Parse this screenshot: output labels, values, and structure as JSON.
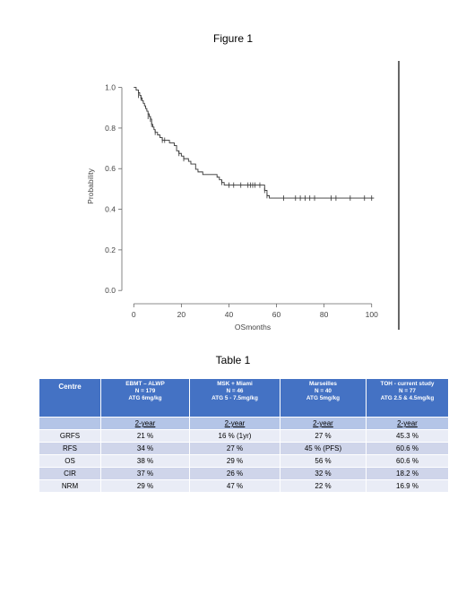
{
  "figure": {
    "title": "Figure 1"
  },
  "chart_data": {
    "type": "line",
    "xlabel": "OSmonths",
    "ylabel": "Probability",
    "xlim": [
      -5,
      105
    ],
    "ylim": [
      -0.03,
      1.06
    ],
    "x_ticks": [
      "0",
      "20",
      "40",
      "60",
      "80",
      "100"
    ],
    "x_tick_values": [
      0,
      20,
      40,
      60,
      80,
      100
    ],
    "y_ticks": [
      "0.0",
      "0.2",
      "0.4",
      "0.6",
      "0.8",
      "1.0"
    ],
    "y_tick_values": [
      0.0,
      0.2,
      0.4,
      0.6,
      0.8,
      1.0
    ],
    "series": [
      {
        "step_points": [
          [
            0,
            1.0
          ],
          [
            1,
            0.987
          ],
          [
            2,
            0.974
          ],
          [
            2.5,
            0.961
          ],
          [
            3,
            0.948
          ],
          [
            3.5,
            0.935
          ],
          [
            4,
            0.922
          ],
          [
            4.5,
            0.909
          ],
          [
            5,
            0.896
          ],
          [
            5.5,
            0.883
          ],
          [
            6,
            0.87
          ],
          [
            6.5,
            0.857
          ],
          [
            7,
            0.844
          ],
          [
            7.5,
            0.818
          ],
          [
            8,
            0.805
          ],
          [
            8.5,
            0.792
          ],
          [
            9,
            0.779
          ],
          [
            10,
            0.766
          ],
          [
            11,
            0.753
          ],
          [
            12,
            0.74
          ],
          [
            15,
            0.727
          ],
          [
            17,
            0.714
          ],
          [
            18,
            0.688
          ],
          [
            19,
            0.675
          ],
          [
            20,
            0.662
          ],
          [
            21,
            0.649
          ],
          [
            23,
            0.636
          ],
          [
            24,
            0.623
          ],
          [
            26,
            0.597
          ],
          [
            27,
            0.584
          ],
          [
            29,
            0.571
          ],
          [
            35,
            0.558
          ],
          [
            36,
            0.545
          ],
          [
            37,
            0.532
          ],
          [
            38,
            0.519
          ],
          [
            55,
            0.493
          ],
          [
            56,
            0.467
          ],
          [
            57,
            0.455
          ],
          [
            101,
            0.455
          ]
        ],
        "censor_points": [
          [
            2,
            0.961
          ],
          [
            3,
            0.948
          ],
          [
            6,
            0.857
          ],
          [
            7,
            0.844
          ],
          [
            7.5,
            0.818
          ],
          [
            9,
            0.779
          ],
          [
            12,
            0.74
          ],
          [
            13,
            0.74
          ],
          [
            19,
            0.675
          ],
          [
            21,
            0.649
          ],
          [
            37,
            0.532
          ],
          [
            40,
            0.519
          ],
          [
            42,
            0.519
          ],
          [
            45,
            0.519
          ],
          [
            48,
            0.519
          ],
          [
            49,
            0.519
          ],
          [
            50,
            0.519
          ],
          [
            51,
            0.519
          ],
          [
            53,
            0.519
          ],
          [
            55,
            0.493
          ],
          [
            56,
            0.467
          ],
          [
            63,
            0.455
          ],
          [
            68,
            0.455
          ],
          [
            70,
            0.455
          ],
          [
            72,
            0.455
          ],
          [
            74,
            0.455
          ],
          [
            76,
            0.455
          ],
          [
            83,
            0.455
          ],
          [
            85,
            0.455
          ],
          [
            91,
            0.455
          ],
          [
            97,
            0.455
          ],
          [
            100,
            0.455
          ]
        ]
      }
    ],
    "right_border_line": true
  },
  "table": {
    "title": "Table 1",
    "header": {
      "centre": "Centre",
      "cols": [
        {
          "line1": "EBMT – ALWP",
          "line2": "N = 179",
          "line3": "ATG 6mg/kg"
        },
        {
          "line1": "MSK + Miami",
          "line2": "N = 46",
          "line3": "ATG 5 - 7.5mg/kg"
        },
        {
          "line1": "Marseilles",
          "line2": "N = 40",
          "line3": "ATG 5mg/kg"
        },
        {
          "line1": "TOH - current study",
          "line2": "N = 77",
          "line3": "ATG 2.5 & 4.5mg/kg"
        }
      ]
    },
    "subheader": [
      "2-year",
      "2-year",
      "2-year",
      "2-year"
    ],
    "rows": [
      {
        "label": "GRFS",
        "values": [
          "21 %",
          "16 % (1yr)",
          "27 %",
          "45.3 %"
        ]
      },
      {
        "label": "RFS",
        "values": [
          "34 %",
          "27 %",
          "45 % (PFS)",
          "60.6 %"
        ]
      },
      {
        "label": "OS",
        "values": [
          "38 %",
          "29 %",
          "56 %",
          "60.6 %"
        ]
      },
      {
        "label": "CIR",
        "values": [
          "37 %",
          "26 %",
          "32 %",
          "18.2 %"
        ]
      },
      {
        "label": "NRM",
        "values": [
          "29 %",
          "47 %",
          "22 %",
          "16.9 %"
        ]
      }
    ],
    "colors": {
      "header_bg": "#4472c4",
      "subheader_bg": "#b4c5e7",
      "row_light": "#e9ecf6",
      "row_dark": "#cfd5ea"
    }
  }
}
